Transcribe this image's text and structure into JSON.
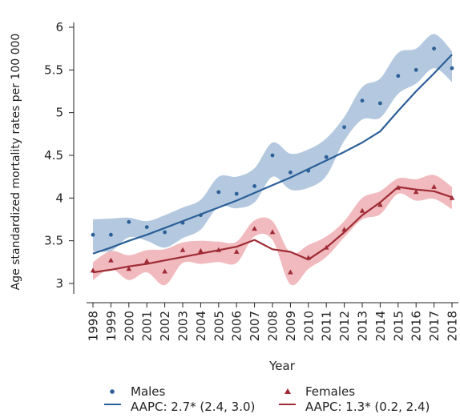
{
  "chart_data": {
    "type": "line",
    "xlabel": "Year",
    "ylabel": "Age standardized mortality rates per 100 000",
    "ylim": [
      2.9,
      6.1
    ],
    "yticks": [
      "3",
      "3.5",
      "4",
      "4.5",
      "5",
      "5.5",
      "6"
    ],
    "categories": [
      "1998",
      "1999",
      "2000",
      "2001",
      "2002",
      "2003",
      "2004",
      "2005",
      "2006",
      "2007",
      "2008",
      "2009",
      "2010",
      "2011",
      "2012",
      "2013",
      "2014",
      "2015",
      "2016",
      "2017",
      "2018"
    ],
    "series": [
      {
        "name": "Males",
        "legend_label": "AAPC: 2.7* (2.4, 3.0)",
        "color": "#2b5f98",
        "band_color": "#a7bfd9",
        "marker": "circle",
        "observed": [
          3.57,
          3.57,
          3.72,
          3.66,
          3.6,
          3.71,
          3.8,
          4.07,
          4.05,
          4.14,
          4.5,
          4.3,
          4.32,
          4.48,
          4.83,
          5.14,
          5.11,
          5.43,
          5.5,
          5.75,
          5.52
        ],
        "fit": [
          3.35,
          3.42,
          3.5,
          3.57,
          3.65,
          3.73,
          3.81,
          3.89,
          3.97,
          4.06,
          4.15,
          4.24,
          4.34,
          4.44,
          4.54,
          4.65,
          4.78,
          5.02,
          5.25,
          5.46,
          5.68
        ],
        "band_upper": [
          3.75,
          3.76,
          3.77,
          3.73,
          3.8,
          3.89,
          3.98,
          4.25,
          4.25,
          4.35,
          4.65,
          4.52,
          4.57,
          4.7,
          4.95,
          5.3,
          5.4,
          5.7,
          5.75,
          5.92,
          5.72
        ],
        "band_lower": [
          3.38,
          3.38,
          3.54,
          3.5,
          3.42,
          3.53,
          3.63,
          3.9,
          3.88,
          3.95,
          4.25,
          4.1,
          4.12,
          4.26,
          4.67,
          4.92,
          4.94,
          5.22,
          5.34,
          5.52,
          5.36
        ]
      },
      {
        "name": "Females",
        "legend_label": "AAPC: 1.3* (0.2, 2.4)",
        "color": "#9e2b35",
        "band_color": "#eeaeb3",
        "marker": "triangle",
        "observed": [
          3.15,
          3.27,
          3.17,
          3.26,
          3.14,
          3.39,
          3.38,
          3.39,
          3.37,
          3.64,
          3.6,
          3.13,
          3.3,
          3.42,
          3.63,
          3.85,
          3.92,
          4.12,
          4.07,
          4.13,
          4.0
        ],
        "fit": [
          3.13,
          3.16,
          3.2,
          3.23,
          3.27,
          3.31,
          3.35,
          3.39,
          3.43,
          3.51,
          3.4,
          3.37,
          3.28,
          3.42,
          3.6,
          3.8,
          3.95,
          4.13,
          4.1,
          4.08,
          4.01
        ],
        "band_upper": [
          3.25,
          3.38,
          3.33,
          3.39,
          3.4,
          3.48,
          3.5,
          3.49,
          3.49,
          3.74,
          3.73,
          3.36,
          3.45,
          3.55,
          3.73,
          4.0,
          4.08,
          4.23,
          4.22,
          4.27,
          4.13
        ],
        "band_lower": [
          3.04,
          3.17,
          3.04,
          3.13,
          2.98,
          3.24,
          3.23,
          3.25,
          3.24,
          3.55,
          3.51,
          2.99,
          3.17,
          3.31,
          3.54,
          3.75,
          3.81,
          4.05,
          3.97,
          3.99,
          3.87
        ]
      }
    ],
    "legend_position": "bottom"
  }
}
